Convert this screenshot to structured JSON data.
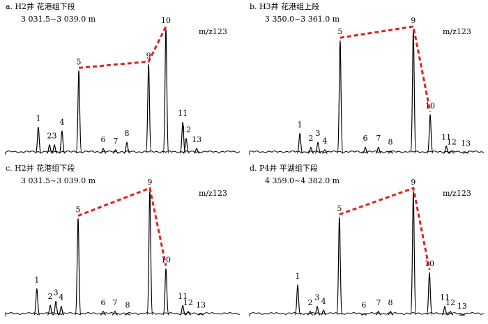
{
  "chart_data": [
    {
      "type": "chromatogram",
      "title": "a. H2井 花港组下段",
      "subtitle": "3 031.5~3 039.0 m",
      "annotation": "m/z123",
      "connect": [
        4,
        8,
        9
      ],
      "xlim": [
        0,
        100
      ],
      "ylim": [
        0,
        100
      ],
      "color": "#000000",
      "connect_color": "#e02020",
      "categories": [
        "1",
        "2",
        "3",
        "4",
        "5",
        "6",
        "7",
        "8",
        "9",
        "10",
        "11",
        "12",
        "13"
      ],
      "x": [
        15.7,
        20.3,
        22.3,
        25.4,
        32.3,
        42.3,
        47.4,
        52,
        60.9,
        68,
        74.9,
        76.3,
        80.6
      ],
      "values": [
        22,
        8,
        8,
        19,
        67,
        5,
        4,
        10,
        72,
        100,
        26,
        13,
        5
      ]
    },
    {
      "type": "chromatogram",
      "title": "b. H3井 花港组上段",
      "subtitle": "3 350.0~3 361.0 m",
      "annotation": "m/z123",
      "connect": [
        4,
        8,
        9
      ],
      "xlim": [
        0,
        100
      ],
      "ylim": [
        0,
        100
      ],
      "color": "#000000",
      "connect_color": "#e02020",
      "categories": [
        "1",
        "2",
        "3",
        "4",
        "5",
        "6",
        "7",
        "8",
        "9",
        "10",
        "11",
        "12",
        "13"
      ],
      "x": [
        22.9,
        27.4,
        30.3,
        33.1,
        39.4,
        49.7,
        55.1,
        60,
        69.4,
        76.3,
        82.9,
        85.1,
        90.9
      ],
      "values": [
        17,
        6,
        10,
        4,
        91,
        6,
        6,
        3,
        100,
        32,
        7,
        3,
        2
      ]
    },
    {
      "type": "chromatogram",
      "title": "c. H2井 花港组下段",
      "subtitle": "3 031.5~3 039.0 m",
      "annotation": "m/z123",
      "connect": [
        4,
        8,
        9
      ],
      "xlim": [
        0,
        100
      ],
      "ylim": [
        0,
        100
      ],
      "color": "#000000",
      "connect_color": "#e02020",
      "categories": [
        "1",
        "2",
        "3",
        "4",
        "5",
        "6",
        "7",
        "8",
        "9",
        "10",
        "11",
        "12",
        "13"
      ],
      "x": [
        15.1,
        20.6,
        22.9,
        25.1,
        32,
        42.3,
        47.1,
        52.3,
        61.4,
        68,
        74.9,
        77.1,
        82.3
      ],
      "values": [
        22,
        9,
        12,
        8,
        78,
        4,
        4,
        2,
        100,
        38,
        9,
        4,
        2
      ]
    },
    {
      "type": "chromatogram",
      "title": "d. P4井 平湖组下段",
      "subtitle": "4 359.0~4 382.0 m",
      "annotation": "m/z123",
      "connect": [
        4,
        8,
        9
      ],
      "xlim": [
        0,
        100
      ],
      "ylim": [
        0,
        100
      ],
      "color": "#000000",
      "connect_color": "#e02020",
      "categories": [
        "1",
        "2",
        "3",
        "4",
        "5",
        "6",
        "7",
        "8",
        "9",
        "10",
        "11",
        "12",
        "13"
      ],
      "x": [
        22,
        27.1,
        30,
        32.6,
        39.1,
        49.1,
        55.1,
        60,
        69.4,
        76,
        82.3,
        84.6,
        89.4
      ],
      "values": [
        25,
        4,
        8,
        5,
        79,
        2,
        4,
        4,
        100,
        35,
        8,
        4,
        1
      ]
    }
  ]
}
